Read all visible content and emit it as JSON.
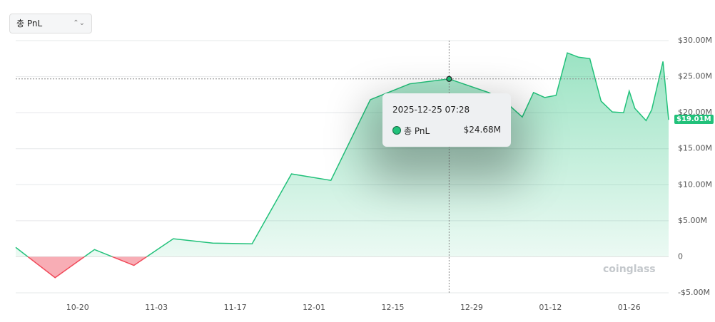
{
  "selector": "총 PnL",
  "watermark": "coinglass",
  "chart_data": {
    "type": "area",
    "x": [
      "2025-10-09",
      "2025-10-16",
      "2025-10-23",
      "2025-10-30",
      "2025-11-06",
      "2025-11-13",
      "2025-11-20",
      "2025-11-27",
      "2025-12-04",
      "2025-12-11",
      "2025-12-18",
      "2025-12-25",
      "2026-01-01",
      "2026-01-04",
      "2026-01-07",
      "2026-01-09",
      "2026-01-11",
      "2026-01-13",
      "2026-01-15",
      "2026-01-17",
      "2026-01-19",
      "2026-01-21",
      "2026-01-23",
      "2026-01-25",
      "2026-01-26",
      "2026-01-27",
      "2026-01-29",
      "2026-01-30",
      "2026-02-01",
      "2026-02-02"
    ],
    "series": [
      {
        "name": "총 PnL",
        "color": "#21c17a",
        "negative_color": "#f04a5a",
        "values": [
          1.3,
          -2.9,
          1.0,
          -1.2,
          2.5,
          1.9,
          1.8,
          11.5,
          10.6,
          21.8,
          24.0,
          24.68,
          22.8,
          21.5,
          19.4,
          22.8,
          22.1,
          22.4,
          28.3,
          27.7,
          27.5,
          21.6,
          20.1,
          20.0,
          23.0,
          20.6,
          18.9,
          20.4,
          27.1,
          19.01
        ]
      }
    ],
    "xlim": [
      "2025-10-09",
      "2026-02-02"
    ],
    "xticks": [
      {
        "value": "2025-10-20",
        "label": "10-20"
      },
      {
        "value": "2025-11-03",
        "label": "11-03"
      },
      {
        "value": "2025-11-17",
        "label": "11-17"
      },
      {
        "value": "2025-12-01",
        "label": "12-01"
      },
      {
        "value": "2025-12-15",
        "label": "12-15"
      },
      {
        "value": "2025-12-29",
        "label": "12-29"
      },
      {
        "value": "2026-01-12",
        "label": "01-12"
      },
      {
        "value": "2026-01-26",
        "label": "01-26"
      }
    ],
    "ylim": [
      -5,
      30
    ],
    "yticks": [
      {
        "value": -5,
        "label": "-$5.00M"
      },
      0,
      {
        "value": 5,
        "label": "$5.00M"
      },
      {
        "value": 10,
        "label": "$10.00M"
      },
      {
        "value": 15,
        "label": "$15.00M"
      },
      {
        "value": 20,
        "label": "$20.00M"
      },
      {
        "value": 25,
        "label": "$25.00M"
      },
      {
        "value": 30,
        "label": "$30.00M"
      }
    ],
    "grid": true,
    "last_value_label": "$19.01M",
    "tooltip": {
      "x": "2025-12-25",
      "title": "2025-12-25 07:28",
      "label": "$24.68M"
    }
  }
}
